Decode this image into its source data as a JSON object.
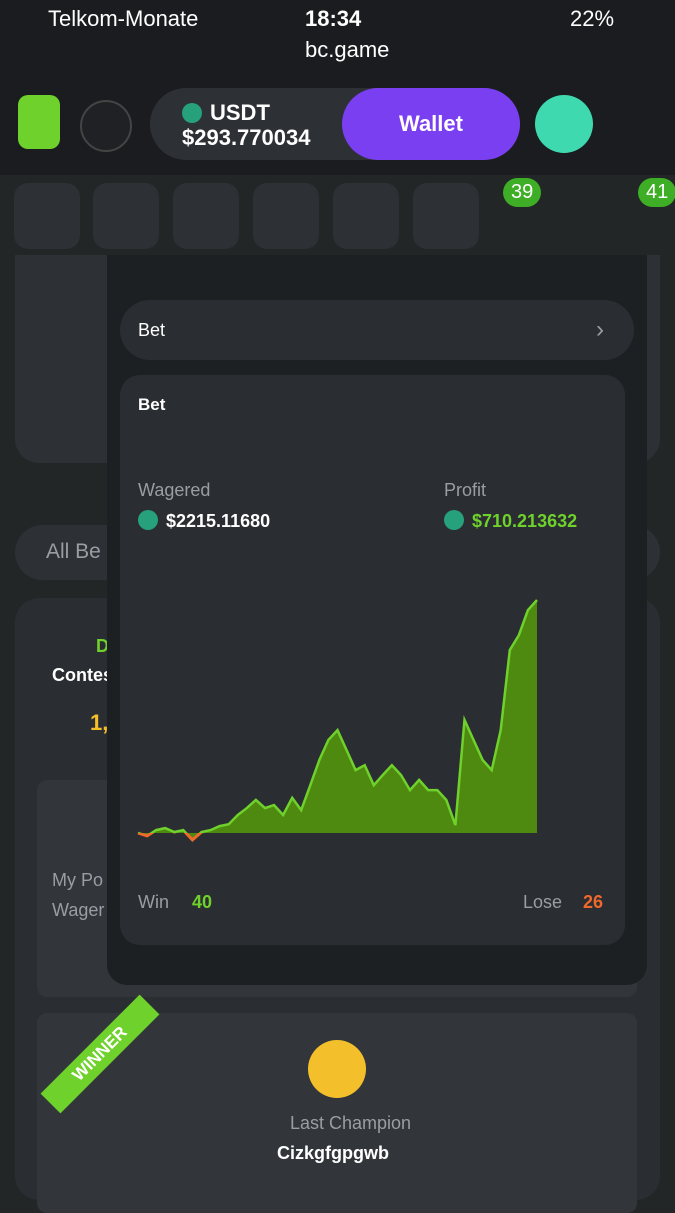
{
  "status_bar": {
    "carrier": "Telkom-Monate",
    "time": "18:34",
    "battery": "22%"
  },
  "url": "bc.game",
  "header": {
    "currency": "USDT",
    "balance": "$293.770034",
    "wallet_button": "Wallet"
  },
  "badges": {
    "messages": 39,
    "chat": 41
  },
  "background": {
    "tab": "All Be",
    "contest_tag": "D",
    "contest": "Contes",
    "amount": "1,",
    "my_position": "My Po",
    "wagered": "Wager",
    "winner_ribbon": "WINNER",
    "last_champion_label": "Last Champion",
    "champion_name": "Cizkgfgpgwb"
  },
  "live_stats": {
    "selector": "Bet",
    "card_title": "Bet",
    "wagered_label": "Wagered",
    "wagered_value": "$2215.11680",
    "profit_label": "Profit",
    "profit_value": "$710.213632",
    "win_label": "Win",
    "win_count": 40,
    "lose_label": "Lose",
    "lose_count": 26,
    "profit_chart": {
      "type": "area",
      "values": [
        0,
        -9,
        9,
        15,
        3,
        9,
        -21,
        3,
        9,
        21,
        27,
        55,
        76,
        101,
        76,
        85,
        55,
        107,
        70,
        146,
        223,
        284,
        314,
        253,
        192,
        207,
        146,
        177,
        207,
        177,
        131,
        162,
        131,
        131,
        101,
        24,
        345,
        284,
        223,
        192,
        314,
        558,
        604,
        680,
        711
      ]
    }
  }
}
